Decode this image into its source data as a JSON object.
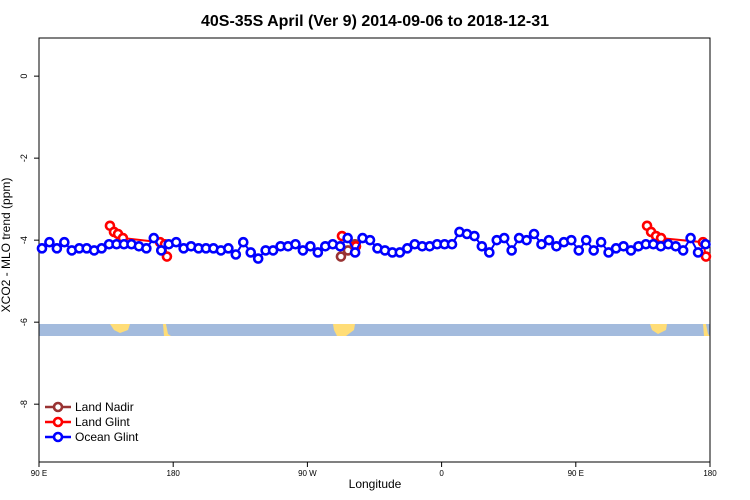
{
  "chart_data": {
    "type": "line",
    "title": "40S-35S April (Ver 9)   2014-09-06 to 2018-12-31",
    "xlabel": "Longitude",
    "ylabel": "XCO2 - MLO trend (ppm)",
    "xlim": [
      90,
      540
    ],
    "xticks": [
      {
        "value": 90,
        "label": "90 E"
      },
      {
        "value": 180,
        "label": "180"
      },
      {
        "value": 270,
        "label": "90 W"
      },
      {
        "value": 360,
        "label": "0"
      },
      {
        "value": 450,
        "label": "90 E"
      },
      {
        "value": 540,
        "label": "180"
      }
    ],
    "ylim": [
      -9.41,
      0.93
    ],
    "yticks": [
      0,
      -2,
      -4,
      -6,
      -8
    ],
    "legend": "bottom-left",
    "series": [
      {
        "name": "Land Nadir",
        "color": "#993333",
        "x": [
          292.5,
          297.2,
          301.9
        ],
        "values": [
          -4.4,
          -4.25,
          -4.1
        ]
      },
      {
        "name": "Land Glint",
        "color": "#ff0000",
        "x": [
          137.6,
          140.3,
          143,
          146.3,
          171.2,
          174.5,
          175.8,
          230,
          293.2,
          302.6,
          400,
          497.8,
          500.5,
          503.8,
          507.2,
          535.3,
          537.3
        ],
        "values": [
          -3.65,
          -3.8,
          -3.85,
          -3.95,
          -4.05,
          -4.1,
          -4.4,
          null,
          -3.9,
          -4.15,
          null,
          -3.65,
          -3.8,
          -3.9,
          -3.95,
          -4.05,
          -4.4
        ]
      },
      {
        "name": "Ocean Glint",
        "color": "#0000ff",
        "x": [
          92,
          97,
          102,
          107,
          112,
          117,
          122,
          127,
          132,
          137,
          142,
          147,
          152,
          157,
          162,
          167,
          172,
          177,
          182,
          187,
          192,
          197,
          202,
          207,
          212,
          217,
          222,
          227,
          232,
          237,
          242,
          247,
          252,
          257,
          262,
          267,
          272,
          277,
          282,
          287,
          292,
          297,
          302,
          307,
          312,
          317,
          322,
          327,
          332,
          337,
          342,
          347,
          352,
          357,
          362,
          367,
          372,
          377,
          382,
          387,
          392,
          397,
          402,
          407,
          412,
          417,
          422,
          427,
          432,
          437,
          442,
          447,
          452,
          457,
          462,
          467,
          472,
          477,
          482,
          487,
          492,
          497,
          502,
          507,
          512,
          517,
          522,
          527,
          532,
          537
        ],
        "values": [
          -4.2,
          -4.05,
          -4.2,
          -4.05,
          -4.25,
          -4.2,
          -4.2,
          -4.25,
          -4.2,
          -4.1,
          -4.1,
          -4.1,
          -4.1,
          -4.15,
          -4.2,
          -3.95,
          -4.25,
          -4.1,
          -4.05,
          -4.2,
          -4.15,
          -4.2,
          -4.2,
          -4.2,
          -4.25,
          -4.2,
          -4.35,
          -4.05,
          -4.3,
          -4.45,
          -4.25,
          -4.25,
          -4.15,
          -4.15,
          -4.1,
          -4.25,
          -4.15,
          -4.3,
          -4.15,
          -4.1,
          -4.15,
          -3.95,
          -4.3,
          -3.95,
          -4.0,
          -4.2,
          -4.25,
          -4.3,
          -4.3,
          -4.2,
          -4.1,
          -4.15,
          -4.15,
          -4.1,
          -4.1,
          -4.1,
          -3.8,
          -3.85,
          -3.9,
          -4.15,
          -4.3,
          -4.0,
          -3.95,
          -4.25,
          -3.95,
          -4.0,
          -3.85,
          -4.1,
          -4.0,
          -4.15,
          -4.05,
          -4.0,
          -4.25,
          -4.0,
          -4.25,
          -4.05,
          -4.3,
          -4.2,
          -4.15,
          -4.25,
          -4.15,
          -4.1,
          -4.1,
          -4.15,
          -4.1,
          -4.15,
          -4.25,
          -3.95,
          -4.3,
          -4.1
        ]
      }
    ]
  }
}
